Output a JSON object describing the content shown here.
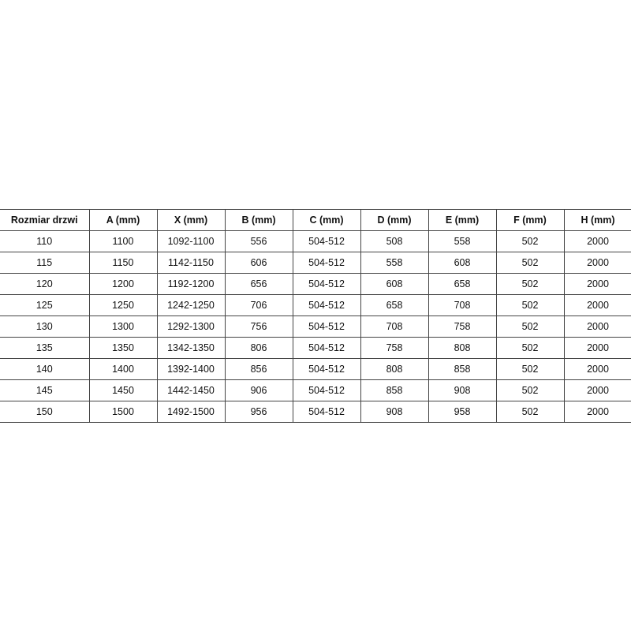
{
  "table": {
    "headers": [
      "Rozmiar drzwi",
      "A (mm)",
      "X (mm)",
      "B (mm)",
      "C (mm)",
      "D (mm)",
      "E (mm)",
      "F (mm)",
      "H (mm)"
    ],
    "rows": [
      [
        "110",
        "1100",
        "1092-1100",
        "556",
        "504-512",
        "508",
        "558",
        "502",
        "2000"
      ],
      [
        "115",
        "1150",
        "1142-1150",
        "606",
        "504-512",
        "558",
        "608",
        "502",
        "2000"
      ],
      [
        "120",
        "1200",
        "1192-1200",
        "656",
        "504-512",
        "608",
        "658",
        "502",
        "2000"
      ],
      [
        "125",
        "1250",
        "1242-1250",
        "706",
        "504-512",
        "658",
        "708",
        "502",
        "2000"
      ],
      [
        "130",
        "1300",
        "1292-1300",
        "756",
        "504-512",
        "708",
        "758",
        "502",
        "2000"
      ],
      [
        "135",
        "1350",
        "1342-1350",
        "806",
        "504-512",
        "758",
        "808",
        "502",
        "2000"
      ],
      [
        "140",
        "1400",
        "1392-1400",
        "856",
        "504-512",
        "808",
        "858",
        "502",
        "2000"
      ],
      [
        "145",
        "1450",
        "1442-1450",
        "906",
        "504-512",
        "858",
        "908",
        "502",
        "2000"
      ],
      [
        "150",
        "1500",
        "1492-1500",
        "956",
        "504-512",
        "908",
        "958",
        "502",
        "2000"
      ]
    ]
  }
}
